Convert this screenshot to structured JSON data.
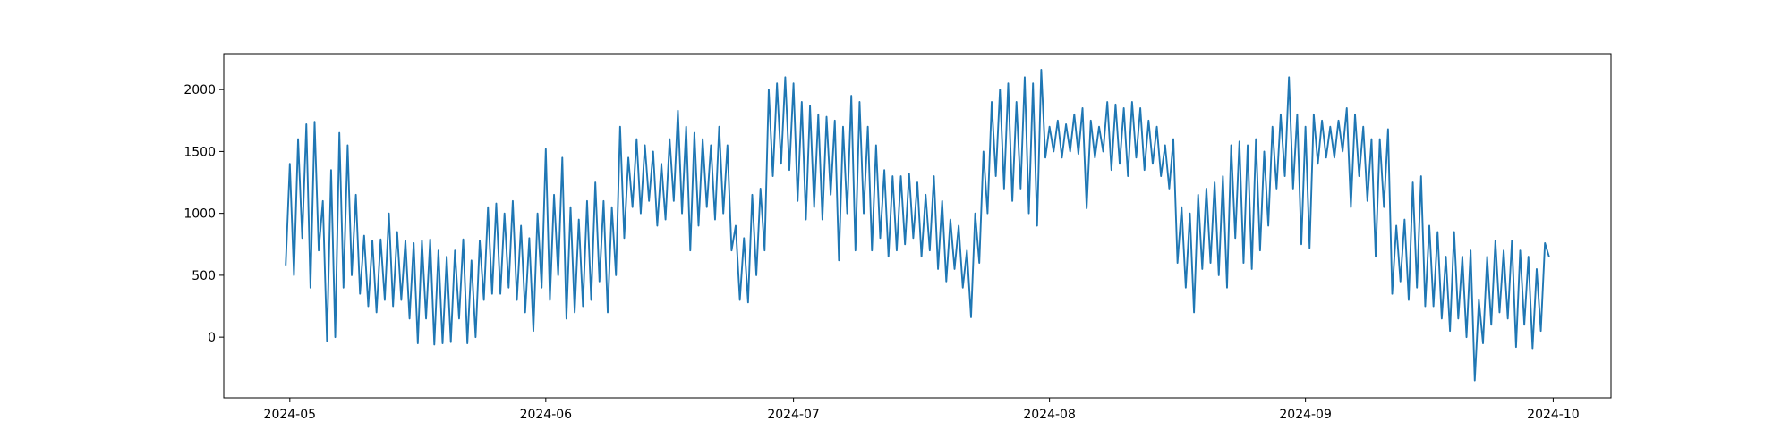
{
  "chart_data": {
    "type": "line",
    "color": "#1f77b4",
    "x": [
      19843.5,
      19844,
      19844.5,
      19845,
      19845.5,
      19846,
      19846.5,
      19847,
      19847.5,
      19848,
      19848.5,
      19849,
      19849.5,
      19850,
      19850.5,
      19851,
      19851.5,
      19852,
      19852.5,
      19853,
      19853.5,
      19854,
      19854.5,
      19855,
      19855.5,
      19856,
      19856.5,
      19857,
      19857.5,
      19858,
      19858.5,
      19859,
      19859.5,
      19860,
      19860.5,
      19861,
      19861.5,
      19862,
      19862.5,
      19863,
      19863.5,
      19864,
      19864.5,
      19865,
      19865.5,
      19866,
      19866.5,
      19867,
      19867.5,
      19868,
      19868.5,
      19869,
      19869.5,
      19870,
      19870.5,
      19871,
      19871.5,
      19872,
      19872.5,
      19873,
      19873.5,
      19874,
      19874.5,
      19875,
      19875.5,
      19876,
      19876.5,
      19877,
      19877.5,
      19878,
      19878.5,
      19879,
      19879.5,
      19880,
      19880.5,
      19881,
      19881.5,
      19882,
      19882.5,
      19883,
      19883.5,
      19884,
      19884.5,
      19885,
      19885.5,
      19886,
      19886.5,
      19887,
      19887.5,
      19888,
      19888.5,
      19889,
      19889.5,
      19890,
      19890.5,
      19891,
      19891.5,
      19892,
      19892.5,
      19893,
      19893.5,
      19894,
      19894.5,
      19895,
      19895.5,
      19896,
      19896.5,
      19897,
      19897.5,
      19898,
      19898.5,
      19899,
      19899.5,
      19900,
      19900.5,
      19901,
      19901.5,
      19902,
      19902.5,
      19903,
      19903.5,
      19904,
      19904.5,
      19905,
      19905.5,
      19906,
      19906.5,
      19907,
      19907.5,
      19908,
      19908.5,
      19909,
      19909.5,
      19910,
      19910.5,
      19911,
      19911.5,
      19912,
      19912.5,
      19913,
      19913.5,
      19914,
      19914.5,
      19915,
      19915.5,
      19916,
      19916.5,
      19917,
      19917.5,
      19918,
      19918.5,
      19919,
      19919.5,
      19920,
      19920.5,
      19921,
      19921.5,
      19922,
      19922.5,
      19923,
      19923.5,
      19924,
      19924.5,
      19925,
      19925.5,
      19926,
      19926.5,
      19927,
      19927.5,
      19928,
      19928.5,
      19929,
      19929.5,
      19930,
      19930.5,
      19931,
      19931.5,
      19932,
      19932.5,
      19933,
      19933.5,
      19934,
      19934.5,
      19935,
      19935.5,
      19936,
      19936.5,
      19937,
      19937.5,
      19938,
      19938.5,
      19939,
      19939.5,
      19940,
      19940.5,
      19941,
      19941.5,
      19942,
      19942.5,
      19943,
      19943.5,
      19944,
      19944.5,
      19945,
      19945.5,
      19946,
      19946.5,
      19947,
      19947.5,
      19948,
      19948.5,
      19949,
      19949.5,
      19950,
      19950.5,
      19951,
      19951.5,
      19952,
      19952.5,
      19953,
      19953.5,
      19954,
      19954.5,
      19955,
      19955.5,
      19956,
      19956.5,
      19957,
      19957.5,
      19958,
      19958.5,
      19959,
      19959.5,
      19960,
      19960.5,
      19961,
      19961.5,
      19962,
      19962.5,
      19963,
      19963.5,
      19964,
      19964.5,
      19965,
      19965.5,
      19966,
      19966.5,
      19967,
      19967.5,
      19968,
      19968.5,
      19969,
      19969.5,
      19970,
      19970.5,
      19971,
      19971.5,
      19972,
      19972.5,
      19973,
      19973.5,
      19974,
      19974.5,
      19975,
      19975.5,
      19976,
      19976.5,
      19977,
      19977.5,
      19978,
      19978.5,
      19979,
      19979.5,
      19980,
      19980.5,
      19981,
      19981.5,
      19982,
      19982.5,
      19983,
      19983.5,
      19984,
      19984.5,
      19985,
      19985.5,
      19986,
      19986.5,
      19987,
      19987.5,
      19988,
      19988.5,
      19989,
      19989.5,
      19990,
      19990.5,
      19991,
      19991.5,
      19992,
      19992.5,
      19993,
      19993.5,
      19994,
      19994.5,
      19995,
      19995.5,
      19996,
      19996.5
    ],
    "values": [
      580,
      1400,
      500,
      1600,
      800,
      1720,
      400,
      1740,
      700,
      1100,
      -30,
      1350,
      0,
      1650,
      400,
      1550,
      500,
      1150,
      350,
      820,
      250,
      780,
      200,
      790,
      300,
      1000,
      250,
      850,
      300,
      780,
      150,
      760,
      -50,
      780,
      150,
      790,
      -60,
      700,
      -50,
      650,
      -40,
      700,
      150,
      790,
      -50,
      620,
      0,
      780,
      300,
      1050,
      350,
      1080,
      350,
      1000,
      400,
      1100,
      300,
      900,
      200,
      800,
      50,
      1000,
      400,
      1520,
      300,
      1150,
      500,
      1450,
      150,
      1050,
      200,
      950,
      250,
      1100,
      300,
      1250,
      450,
      1100,
      200,
      1050,
      500,
      1700,
      800,
      1450,
      1050,
      1600,
      1000,
      1550,
      1100,
      1500,
      900,
      1400,
      950,
      1600,
      1100,
      1830,
      1000,
      1700,
      700,
      1650,
      900,
      1600,
      1050,
      1550,
      950,
      1700,
      1000,
      1550,
      700,
      900,
      300,
      800,
      280,
      1150,
      500,
      1200,
      700,
      2000,
      1300,
      2050,
      1400,
      2100,
      1350,
      2050,
      1100,
      1900,
      950,
      1870,
      1050,
      1800,
      950,
      1780,
      1150,
      1750,
      620,
      1700,
      1000,
      1950,
      700,
      1900,
      1000,
      1700,
      700,
      1550,
      800,
      1350,
      650,
      1300,
      700,
      1300,
      750,
      1320,
      800,
      1250,
      650,
      1150,
      700,
      1300,
      550,
      1100,
      450,
      950,
      550,
      900,
      400,
      700,
      160,
      1000,
      600,
      1500,
      1000,
      1900,
      1300,
      2000,
      1200,
      2050,
      1100,
      1900,
      1200,
      2100,
      1000,
      2050,
      900,
      2160,
      1450,
      1700,
      1500,
      1750,
      1450,
      1720,
      1500,
      1800,
      1480,
      1850,
      1040,
      1750,
      1450,
      1700,
      1500,
      1900,
      1350,
      1880,
      1400,
      1850,
      1300,
      1900,
      1450,
      1850,
      1350,
      1750,
      1400,
      1700,
      1300,
      1550,
      1200,
      1600,
      600,
      1050,
      400,
      1000,
      200,
      1150,
      550,
      1200,
      600,
      1250,
      500,
      1300,
      400,
      1550,
      800,
      1580,
      600,
      1550,
      550,
      1600,
      700,
      1500,
      900,
      1700,
      1200,
      1800,
      1300,
      2100,
      1200,
      1800,
      750,
      1700,
      720,
      1800,
      1400,
      1750,
      1450,
      1700,
      1450,
      1750,
      1500,
      1850,
      1050,
      1800,
      1300,
      1700,
      1100,
      1600,
      650,
      1600,
      1050,
      1680,
      350,
      900,
      450,
      950,
      300,
      1250,
      400,
      1300,
      250,
      900,
      250,
      850,
      150,
      650,
      50,
      850,
      150,
      650,
      0,
      700,
      -350,
      300,
      -50,
      650,
      100,
      780,
      200,
      700,
      150,
      780,
      -80,
      700,
      100,
      650,
      -90,
      550,
      50,
      760,
      650
    ],
    "xlim": [
      19836,
      20004
    ],
    "ylim": [
      -490,
      2290
    ],
    "xticks": [
      {
        "value": 19844,
        "label": "2024-05"
      },
      {
        "value": 19875,
        "label": "2024-06"
      },
      {
        "value": 19905,
        "label": "2024-07"
      },
      {
        "value": 19936,
        "label": "2024-08"
      },
      {
        "value": 19967,
        "label": "2024-09"
      },
      {
        "value": 19997,
        "label": "2024-10"
      }
    ],
    "yticks": [
      0,
      500,
      1000,
      1500,
      2000
    ]
  }
}
